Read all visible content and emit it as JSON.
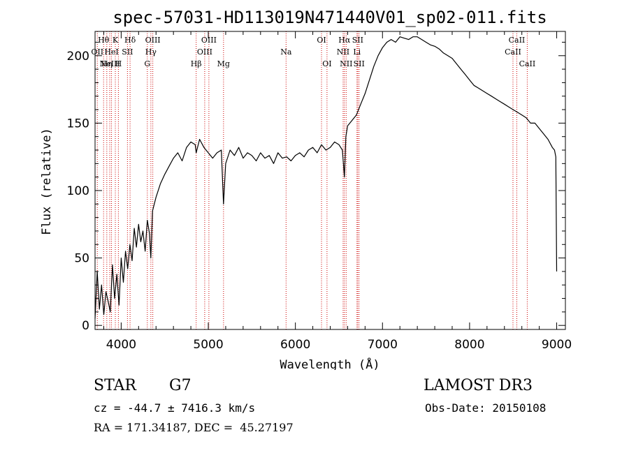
{
  "chart_data": {
    "type": "line",
    "title": "spec-57031-HD113019N471440V01_sp02-011.fits",
    "xlabel": "Wavelength (Å)",
    "ylabel": "Flux (relative)",
    "xlim": [
      3700,
      9100
    ],
    "ylim": [
      -3,
      218
    ],
    "xticks": [
      4000,
      5000,
      6000,
      7000,
      8000,
      9000
    ],
    "yticks": [
      0,
      50,
      100,
      150,
      200
    ],
    "line_color": "#000000",
    "marker_color": "#cc0000",
    "series": [
      {
        "name": "flux",
        "x": [
          3700,
          3725,
          3750,
          3775,
          3800,
          3825,
          3850,
          3875,
          3900,
          3925,
          3950,
          3975,
          4000,
          4025,
          4050,
          4075,
          4100,
          4125,
          4150,
          4175,
          4200,
          4225,
          4250,
          4275,
          4300,
          4325,
          4340,
          4360,
          4400,
          4450,
          4500,
          4550,
          4600,
          4650,
          4700,
          4750,
          4800,
          4850,
          4861,
          4900,
          4950,
          5000,
          5050,
          5100,
          5150,
          5175,
          5200,
          5250,
          5300,
          5350,
          5400,
          5450,
          5500,
          5550,
          5600,
          5650,
          5700,
          5750,
          5800,
          5850,
          5900,
          5950,
          6000,
          6050,
          6100,
          6150,
          6200,
          6250,
          6300,
          6350,
          6400,
          6450,
          6500,
          6540,
          6563,
          6580,
          6600,
          6650,
          6700,
          6750,
          6800,
          6850,
          6900,
          6950,
          7000,
          7050,
          7100,
          7150,
          7200,
          7250,
          7300,
          7350,
          7400,
          7450,
          7500,
          7550,
          7600,
          7650,
          7700,
          7750,
          7800,
          7850,
          7900,
          7950,
          8000,
          8050,
          8100,
          8150,
          8200,
          8250,
          8300,
          8350,
          8400,
          8450,
          8500,
          8550,
          8600,
          8650,
          8700,
          8750,
          8800,
          8850,
          8900,
          8950,
          8975,
          8990,
          9000
        ],
        "y": [
          5,
          40,
          12,
          30,
          8,
          25,
          18,
          10,
          45,
          20,
          38,
          15,
          50,
          32,
          55,
          42,
          60,
          48,
          72,
          58,
          75,
          62,
          70,
          55,
          78,
          68,
          50,
          85,
          95,
          105,
          112,
          118,
          124,
          128,
          122,
          132,
          136,
          134,
          128,
          138,
          132,
          128,
          124,
          128,
          130,
          90,
          120,
          130,
          126,
          132,
          124,
          128,
          126,
          122,
          128,
          124,
          126,
          120,
          128,
          124,
          125,
          122,
          126,
          128,
          125,
          130,
          132,
          128,
          134,
          130,
          132,
          136,
          134,
          130,
          110,
          140,
          148,
          152,
          156,
          164,
          172,
          182,
          192,
          200,
          206,
          210,
          212,
          210,
          214,
          213,
          212,
          214,
          214,
          212,
          210,
          208,
          207,
          205,
          202,
          200,
          198,
          194,
          190,
          186,
          182,
          178,
          176,
          174,
          172,
          170,
          168,
          166,
          164,
          162,
          160,
          158,
          156,
          154,
          150,
          150,
          146,
          142,
          138,
          132,
          130,
          125,
          40
        ]
      }
    ],
    "lines": [
      {
        "wl": 3726,
        "label": "OII",
        "row": 1
      },
      {
        "wl": 3798,
        "label": "Hθ",
        "row": 0
      },
      {
        "wl": 3835,
        "label": "Hη",
        "row": 2
      },
      {
        "wl": 3869,
        "label": "NeIII",
        "row": 2
      },
      {
        "wl": 3889,
        "label": "HeI",
        "row": 1
      },
      {
        "wl": 3933,
        "label": "K",
        "row": 0
      },
      {
        "wl": 3968,
        "label": "H",
        "row": 2
      },
      {
        "wl": 4072,
        "label": "SII",
        "row": 1
      },
      {
        "wl": 4102,
        "label": "Hδ",
        "row": 0
      },
      {
        "wl": 4300,
        "label": "G",
        "row": 2
      },
      {
        "wl": 4341,
        "label": "Hγ",
        "row": 1
      },
      {
        "wl": 4363,
        "label": "OIII",
        "row": 0
      },
      {
        "wl": 4861,
        "label": "Hβ",
        "row": 2
      },
      {
        "wl": 4959,
        "label": "OIII",
        "row": 1
      },
      {
        "wl": 5007,
        "label": "OIII",
        "row": 0
      },
      {
        "wl": 5175,
        "label": "Mg",
        "row": 2
      },
      {
        "wl": 5893,
        "label": "Na",
        "row": 1
      },
      {
        "wl": 6300,
        "label": "OI",
        "row": 0
      },
      {
        "wl": 6363,
        "label": "OI",
        "row": 2
      },
      {
        "wl": 6548,
        "label": "NII",
        "row": 1
      },
      {
        "wl": 6563,
        "label": "Hα",
        "row": 0
      },
      {
        "wl": 6583,
        "label": "NII",
        "row": 2
      },
      {
        "wl": 6707,
        "label": "Li",
        "row": 1
      },
      {
        "wl": 6716,
        "label": "SII",
        "row": 0
      },
      {
        "wl": 6731,
        "label": "SII",
        "row": 2
      },
      {
        "wl": 8498,
        "label": "CaII",
        "row": 1
      },
      {
        "wl": 8542,
        "label": "CaII",
        "row": 0
      },
      {
        "wl": 8662,
        "label": "CaII",
        "row": 2
      }
    ]
  },
  "info": {
    "object_class": "STAR",
    "subclass": "G7",
    "survey": "LAMOST DR3",
    "cz": "cz = -44.7 ± 7416.3 km/s",
    "obs_date": "Obs-Date: 20150108",
    "coords": "RA = 171.34187, DEC =  45.27197"
  }
}
